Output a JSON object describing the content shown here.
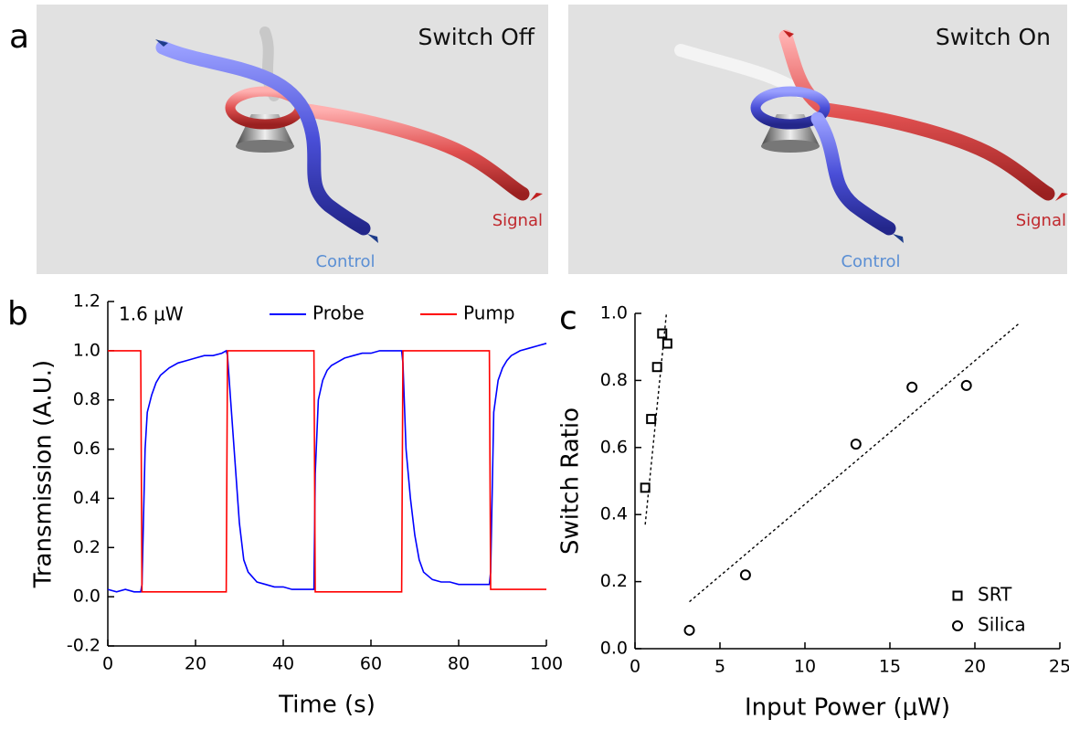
{
  "figure": {
    "panel_labels": [
      "a",
      "b",
      "c"
    ],
    "panel_a": {
      "left": {
        "title": "Switch Off",
        "signal": "Signal",
        "control": "Control"
      },
      "right": {
        "title": "Switch On",
        "signal": "Signal",
        "control": "Control"
      }
    }
  },
  "chart_data": [
    {
      "type": "line",
      "x_label": "Time (s)",
      "y_label": "Transmission (A.U.)",
      "annotation": "1.6 μW",
      "x": [
        0,
        2,
        4,
        6,
        7.5,
        7.8,
        8.5,
        9,
        10,
        11,
        12,
        14,
        16,
        18,
        20,
        22,
        24,
        26,
        27,
        27.3,
        28,
        29,
        30,
        31,
        32,
        34,
        36,
        38,
        40,
        42,
        44,
        46,
        47,
        47.3,
        48,
        49,
        50,
        51,
        52,
        54,
        56,
        58,
        60,
        62,
        64,
        66,
        67,
        67.3,
        68,
        69,
        70,
        71,
        72,
        74,
        76,
        78,
        80,
        82,
        84,
        86,
        87,
        87.3,
        88,
        89,
        90,
        91,
        92,
        94,
        96,
        98,
        100
      ],
      "series": [
        {
          "name": "Probe",
          "color": "#0000ff",
          "values": [
            0.03,
            0.02,
            0.03,
            0.02,
            0.02,
            0.05,
            0.6,
            0.75,
            0.82,
            0.87,
            0.9,
            0.93,
            0.95,
            0.96,
            0.97,
            0.98,
            0.98,
            0.99,
            1.0,
            0.98,
            0.8,
            0.55,
            0.3,
            0.15,
            0.1,
            0.06,
            0.05,
            0.04,
            0.04,
            0.03,
            0.03,
            0.03,
            0.03,
            0.5,
            0.8,
            0.88,
            0.92,
            0.94,
            0.95,
            0.97,
            0.98,
            0.99,
            0.99,
            1.0,
            1.0,
            1.0,
            1.0,
            0.95,
            0.6,
            0.4,
            0.25,
            0.15,
            0.1,
            0.07,
            0.06,
            0.06,
            0.05,
            0.05,
            0.05,
            0.05,
            0.05,
            0.1,
            0.75,
            0.88,
            0.93,
            0.96,
            0.98,
            1.0,
            1.01,
            1.02,
            1.03
          ]
        },
        {
          "name": "Pump",
          "color": "#ff0000",
          "values": [
            1.0,
            1.0,
            1.0,
            1.0,
            1.0,
            0.02,
            0.02,
            0.02,
            0.02,
            0.02,
            0.02,
            0.02,
            0.02,
            0.02,
            0.02,
            0.02,
            0.02,
            0.02,
            0.02,
            1.0,
            1.0,
            1.0,
            1.0,
            1.0,
            1.0,
            1.0,
            1.0,
            1.0,
            1.0,
            1.0,
            1.0,
            1.0,
            1.0,
            0.02,
            0.02,
            0.02,
            0.02,
            0.02,
            0.02,
            0.02,
            0.02,
            0.02,
            0.02,
            0.02,
            0.02,
            0.02,
            0.02,
            1.0,
            1.0,
            1.0,
            1.0,
            1.0,
            1.0,
            1.0,
            1.0,
            1.0,
            1.0,
            1.0,
            1.0,
            1.0,
            1.0,
            0.03,
            0.03,
            0.03,
            0.03,
            0.03,
            0.03,
            0.03,
            0.03,
            0.03,
            0.03
          ]
        }
      ],
      "xlim": [
        0,
        100
      ],
      "xticks": [
        0,
        20,
        40,
        60,
        80,
        100
      ],
      "ylim": [
        -0.2,
        1.2
      ],
      "yticks": [
        -0.2,
        {
          "value": 0,
          "label": "0.0"
        },
        0.2,
        0.4,
        0.6,
        0.8,
        {
          "value": 1,
          "label": "1.0"
        },
        1.2
      ],
      "legend": "top"
    },
    {
      "type": "scatter",
      "x_label": "Input Power (μW)",
      "y_label": "Switch Ratio",
      "series": [
        {
          "name": "SRT",
          "marker": "square",
          "color": "#000000",
          "x": [
            0.6,
            0.95,
            1.3,
            1.6,
            1.9
          ],
          "values": [
            0.48,
            0.685,
            0.84,
            0.94,
            0.91
          ]
        },
        {
          "name": "Silica",
          "marker": "circle",
          "color": "#000000",
          "x": [
            3.2,
            6.5,
            13,
            16.3,
            19.5
          ],
          "values": [
            0.055,
            0.22,
            0.61,
            0.78,
            0.785
          ]
        }
      ],
      "fits": [
        {
          "x": [
            0.6,
            1.85
          ],
          "values": [
            0.37,
            1.0
          ]
        },
        {
          "x": [
            3.2,
            22.6
          ],
          "values": [
            0.14,
            0.97
          ]
        }
      ],
      "xlim": [
        0,
        25
      ],
      "xticks": [
        0,
        5,
        10,
        15,
        20,
        25
      ],
      "ylim": [
        0,
        1
      ],
      "yticks": [
        {
          "value": 0,
          "label": "0.0"
        },
        0.2,
        0.4,
        0.6,
        0.8,
        {
          "value": 1,
          "label": "1.0"
        }
      ],
      "legend": "lower right"
    }
  ]
}
